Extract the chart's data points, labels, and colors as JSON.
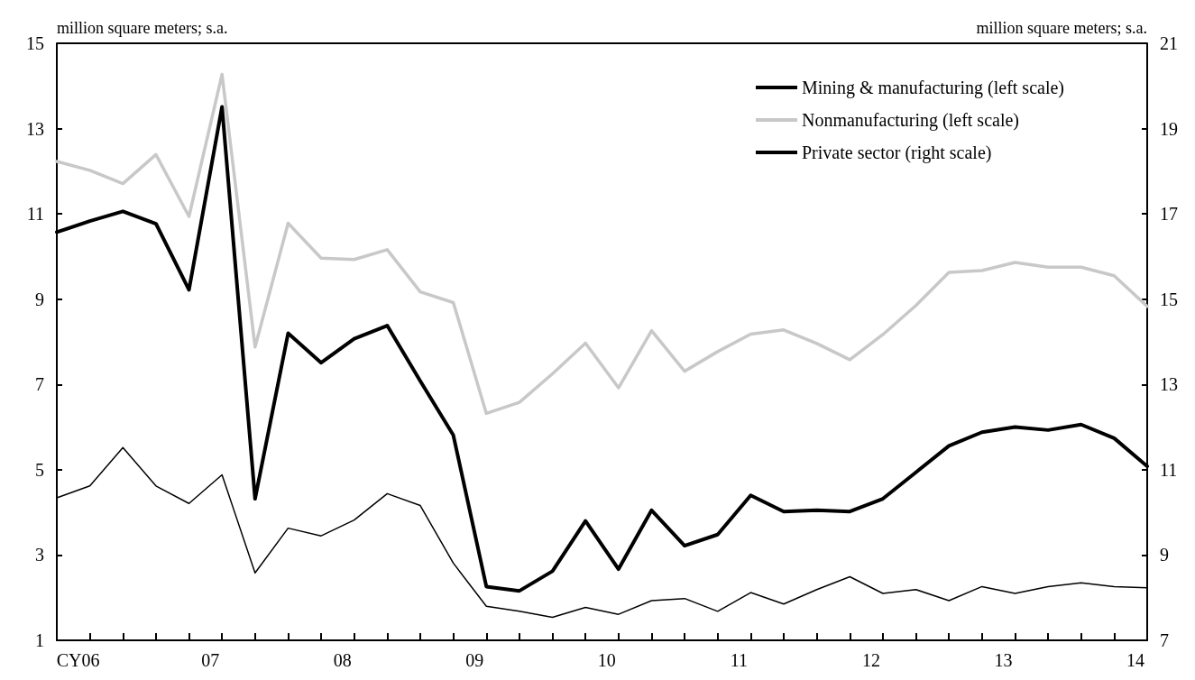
{
  "chart_data": {
    "type": "line",
    "ylabel": "million square meters; s.a.",
    "y2label": "million square meters; s.a.",
    "categories": [
      null,
      "CY06",
      null,
      null,
      null,
      "07",
      null,
      null,
      null,
      "08",
      null,
      null,
      null,
      "09",
      null,
      null,
      null,
      "10",
      null,
      null,
      null,
      "11",
      null,
      null,
      null,
      "12",
      null,
      null,
      null,
      "13",
      null,
      null,
      null,
      "14"
    ],
    "series": [
      {
        "name": "Mining & manufacturing (left scale)",
        "color": "#000000",
        "values": [
          4.34,
          4.62,
          5.52,
          4.62,
          4.21,
          4.88,
          2.58,
          3.63,
          3.45,
          3.82,
          4.44,
          4.16,
          2.81,
          1.8,
          1.68,
          1.54,
          1.77,
          1.61,
          1.93,
          1.98,
          1.68,
          2.12,
          1.85,
          2.19,
          2.49,
          2.1,
          2.19,
          1.93,
          2.26,
          2.1,
          2.26,
          2.35,
          2.26,
          2.23
        ]
      },
      {
        "name": "Nonmanufacturing (left scale)",
        "color": "#c8c8c8",
        "values": [
          12.23,
          12.02,
          11.71,
          12.39,
          10.94,
          14.27,
          7.88,
          10.78,
          9.96,
          9.93,
          10.16,
          9.17,
          8.92,
          6.32,
          6.58,
          7.25,
          7.97,
          6.92,
          8.26,
          7.31,
          7.77,
          8.18,
          8.28,
          7.96,
          7.58,
          8.17,
          8.85,
          9.63,
          9.67,
          9.86,
          9.75,
          9.75,
          9.55,
          8.83
        ]
      },
      {
        "name": "Private sector (right scale)",
        "color": "#000000",
        "axis": "y2",
        "values": [
          16.57,
          16.83,
          17.06,
          16.77,
          15.22,
          19.51,
          10.32,
          14.2,
          13.51,
          14.07,
          14.38,
          13.08,
          11.81,
          8.26,
          8.16,
          8.62,
          9.8,
          8.67,
          10.05,
          9.22,
          9.48,
          10.4,
          10.02,
          10.05,
          10.02,
          10.32,
          10.94,
          11.56,
          11.88,
          12.0,
          11.93,
          12.06,
          11.74,
          11.08
        ]
      }
    ],
    "ylim": [
      1,
      15
    ],
    "yticks": [
      1,
      3,
      5,
      7,
      9,
      11,
      13,
      15
    ],
    "y2lim": [
      7,
      21
    ],
    "y2ticks": [
      7,
      9,
      11,
      13,
      15,
      17,
      19,
      21
    ],
    "legend": "top right",
    "grid": false,
    "marker": "none",
    "line_style": "solid"
  }
}
